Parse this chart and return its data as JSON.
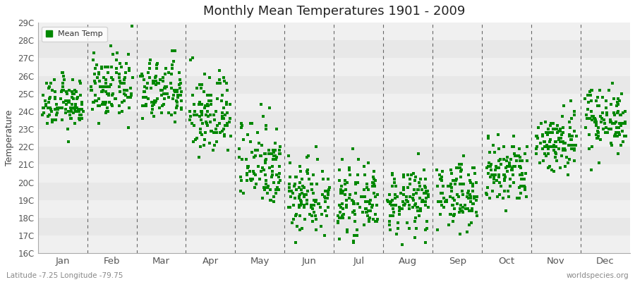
{
  "title": "Monthly Mean Temperatures 1901 - 2009",
  "ylabel": "Temperature",
  "bottom_left": "Latitude -7.25 Longitude -79.75",
  "bottom_right": "worldspecies.org",
  "legend_label": "Mean Temp",
  "ylim": [
    16,
    29
  ],
  "yticks": [
    16,
    17,
    18,
    19,
    20,
    21,
    22,
    23,
    24,
    25,
    26,
    27,
    28,
    29
  ],
  "ytick_labels": [
    "16C",
    "17C",
    "18C",
    "19C",
    "20C",
    "21C",
    "22C",
    "23C",
    "24C",
    "25C",
    "26C",
    "27C",
    "28C",
    "29C"
  ],
  "months": [
    "Jan",
    "Feb",
    "Mar",
    "Apr",
    "May",
    "Jun",
    "Jul",
    "Aug",
    "Sep",
    "Oct",
    "Nov",
    "Dec"
  ],
  "mean_temps": [
    24.4,
    25.3,
    25.1,
    23.8,
    21.2,
    19.3,
    18.9,
    18.9,
    19.3,
    20.5,
    22.3,
    23.6
  ],
  "std_temps": [
    0.7,
    0.9,
    0.9,
    1.2,
    1.3,
    1.1,
    0.9,
    0.9,
    0.9,
    1.0,
    0.9,
    0.9
  ],
  "dot_color": "#008800",
  "dot_size": 5,
  "background_color": "#f5f5f5",
  "band_colors": [
    "#f0f0f0",
    "#e8e8e8"
  ],
  "grid_color": "#666666",
  "years": 109,
  "seed": 12345,
  "figsize": [
    9.0,
    4.0
  ],
  "dpi": 100
}
